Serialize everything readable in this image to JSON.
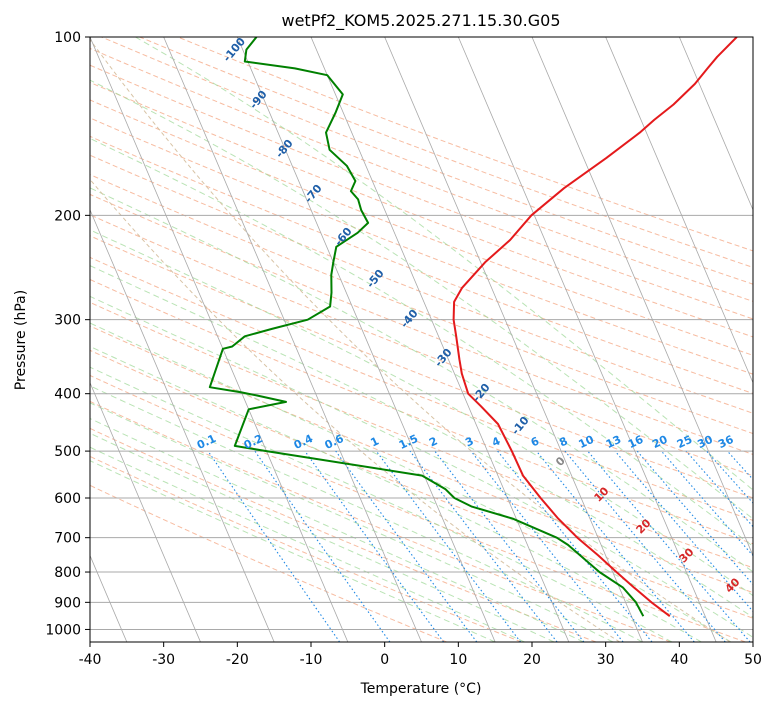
{
  "chart_data": {
    "type": "line",
    "title": "wetPf2_KOM5.2025.271.15.30.G05",
    "xlabel": "Temperature (°C)",
    "ylabel": "Pressure (hPa)",
    "xlim": [
      -40,
      50
    ],
    "ylim": [
      1050,
      100
    ],
    "y_scale": "log",
    "x_ticks": [
      -40,
      -30,
      -20,
      -10,
      0,
      10,
      20,
      30,
      40,
      50
    ],
    "y_ticks": [
      100,
      200,
      300,
      400,
      500,
      600,
      700,
      800,
      900,
      1000
    ],
    "grid": true,
    "series": [
      {
        "role": "temperature",
        "color": "#e41a1c",
        "points": [
          [
            5.2,
            950
          ],
          [
            3.5,
            900
          ],
          [
            2.0,
            850
          ],
          [
            0.5,
            800
          ],
          [
            -1.0,
            750
          ],
          [
            -2.8,
            700
          ],
          [
            -4.3,
            650
          ],
          [
            -5.5,
            600
          ],
          [
            -6.6,
            550
          ],
          [
            -6.7,
            500
          ],
          [
            -7.0,
            450
          ],
          [
            -8.3,
            420
          ],
          [
            -9.3,
            400
          ],
          [
            -9.0,
            370
          ],
          [
            -8.5,
            350
          ],
          [
            -7.6,
            320
          ],
          [
            -7.0,
            300
          ],
          [
            -5.9,
            280
          ],
          [
            -4.0,
            265
          ],
          [
            0.6,
            240
          ],
          [
            5.3,
            220
          ],
          [
            9.6,
            200
          ],
          [
            15.6,
            180
          ],
          [
            23.1,
            160
          ],
          [
            29.1,
            145
          ],
          [
            31.8,
            138
          ],
          [
            35.3,
            130
          ],
          [
            39.4,
            120
          ],
          [
            42.0,
            113
          ],
          [
            44.0,
            108
          ],
          [
            47.8,
            100
          ]
        ]
      },
      {
        "role": "dewpoint",
        "color": "#008000",
        "points": [
          [
            1.6,
            950
          ],
          [
            1.4,
            900
          ],
          [
            0.5,
            850
          ],
          [
            -1.8,
            800
          ],
          [
            -4.5,
            720
          ],
          [
            -5.6,
            700
          ],
          [
            -10.5,
            650
          ],
          [
            -15.4,
            620
          ],
          [
            -17.2,
            600
          ],
          [
            -17.9,
            580
          ],
          [
            -20.3,
            550
          ],
          [
            -40.0,
            500
          ],
          [
            -44.0,
            490
          ],
          [
            -40.0,
            425
          ],
          [
            -34.5,
            413
          ],
          [
            -38.0,
            403
          ],
          [
            -40.0,
            398
          ],
          [
            -44.0,
            390
          ],
          [
            -40.0,
            336
          ],
          [
            -38.6,
            333
          ],
          [
            -36.3,
            320
          ],
          [
            -32.2,
            311
          ],
          [
            -26.8,
            300
          ],
          [
            -23.0,
            285
          ],
          [
            -22.0,
            270
          ],
          [
            -21.0,
            252
          ],
          [
            -20.0,
            240
          ],
          [
            -18.7,
            226
          ],
          [
            -15.0,
            214
          ],
          [
            -13.0,
            206
          ],
          [
            -13.2,
            196
          ],
          [
            -13.0,
            188
          ],
          [
            -13.5,
            182
          ],
          [
            -12.3,
            175
          ],
          [
            -12.6,
            165
          ],
          [
            -14.0,
            155
          ],
          [
            -13.5,
            145
          ],
          [
            -11.0,
            134
          ],
          [
            -9.0,
            125
          ],
          [
            -10.0,
            116
          ],
          [
            -14.0,
            113
          ],
          [
            -20.4,
            110
          ],
          [
            -19.5,
            105
          ],
          [
            -17.4,
            100
          ]
        ]
      }
    ],
    "skew_factor": 35,
    "mixing_ratio_lines": [
      "0.1",
      "0.2",
      "0.4",
      "0.6",
      "1",
      "1.5",
      "2",
      "3",
      "4",
      "6",
      "8",
      "10",
      "13",
      "16",
      "20",
      "25",
      "30",
      "36"
    ],
    "theta_label_values": [
      "-100",
      "-90",
      "-80",
      "-70",
      "-60",
      "-50",
      "-40",
      "-30",
      "-20",
      "-10"
    ],
    "lower_temperature_labels": [
      "0",
      "10",
      "20",
      "30",
      "40"
    ],
    "lower_label_colors": [
      "#888888",
      "#d62728",
      "#d62728",
      "#d62728",
      "#d62728"
    ],
    "colors": {
      "isotherm_grid": "#a9a9a9",
      "dry_adiabat": "#f4a582",
      "moist_adiabat": "#a1d99b",
      "mixing_ratio": "#1e88e5",
      "hodograph_like": "#d8c3a5"
    }
  }
}
